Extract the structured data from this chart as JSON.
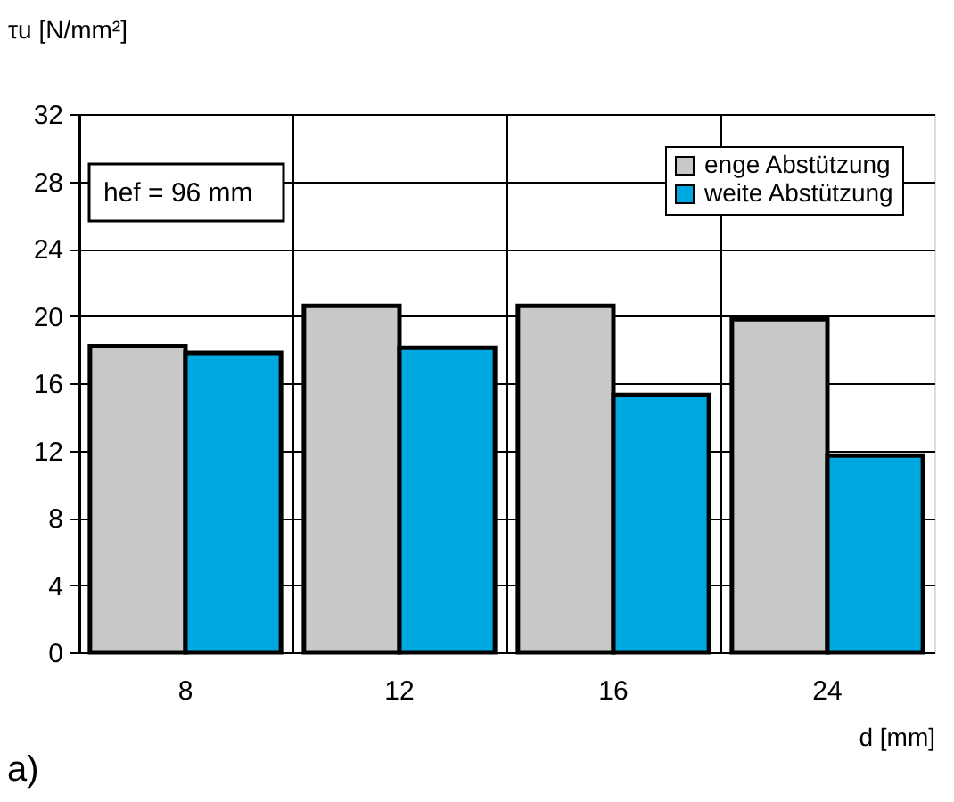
{
  "chart_data": {
    "type": "bar",
    "ylabel": "τu [N/mm²]",
    "xlabel": "d [mm]",
    "categories": [
      "8",
      "12",
      "16",
      "24"
    ],
    "series": [
      {
        "name": "enge Abstützung",
        "color": "#c8c8c8",
        "values": [
          18.2,
          20.6,
          20.6,
          19.8
        ]
      },
      {
        "name": "weite Abstützung",
        "color": "#00a8e1",
        "values": [
          17.8,
          18.1,
          15.3,
          11.7
        ]
      }
    ],
    "ylim": [
      0,
      32
    ],
    "yticks": [
      0,
      4,
      8,
      12,
      16,
      20,
      24,
      28,
      32
    ],
    "grid": true,
    "legend": "top right",
    "annotations": [
      "hef = 96 mm",
      "a)"
    ]
  }
}
